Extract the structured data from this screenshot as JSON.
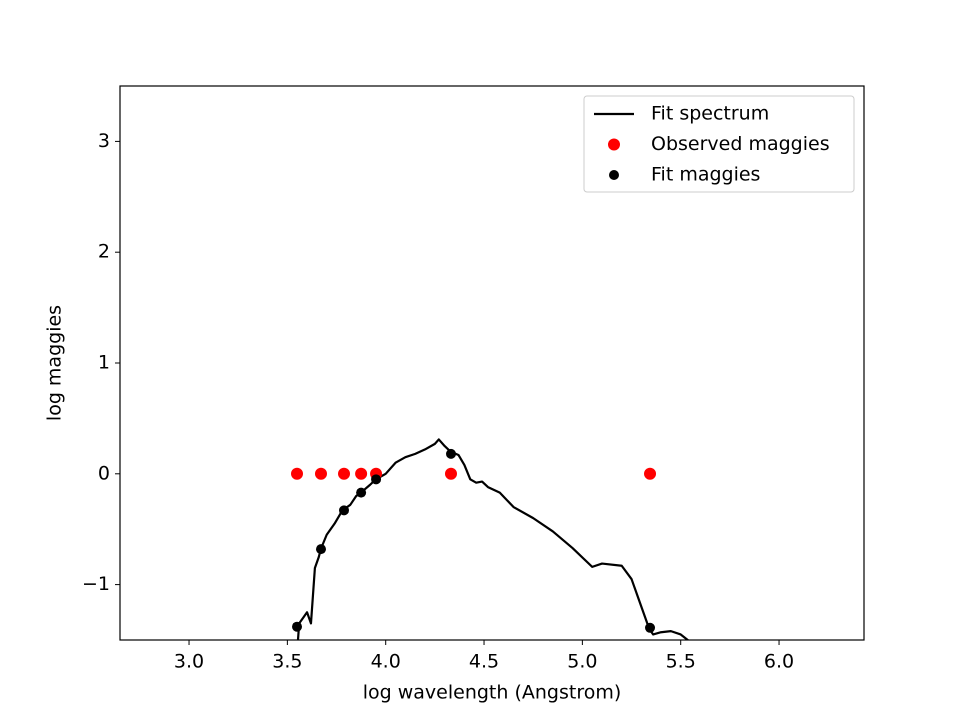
{
  "chart_data": {
    "type": "line",
    "xlabel": "log wavelength (Angstrom)",
    "ylabel": "log maggies",
    "xlim": [
      2.649,
      6.432
    ],
    "ylim": [
      -1.5,
      3.5
    ],
    "xticks": [
      {
        "value": 3,
        "label": "3.0"
      },
      {
        "value": 3.5,
        "label": "3.5"
      },
      {
        "value": 4,
        "label": "4.0"
      },
      {
        "value": 4.5,
        "label": "4.5"
      },
      {
        "value": 5,
        "label": "5.0"
      },
      {
        "value": 5.5,
        "label": "5.5"
      },
      {
        "value": 6,
        "label": "6.0"
      }
    ],
    "yticks": [
      {
        "value": -1,
        "label": "−1"
      },
      0,
      1,
      2,
      3
    ],
    "legend": "upper right",
    "series": [
      {
        "name": "Fit spectrum",
        "type": "line",
        "color": "#000000",
        "x": [
          3.55,
          3.56,
          3.58,
          3.6,
          3.62,
          3.63,
          3.64,
          3.66,
          3.67,
          3.7,
          3.74,
          3.78,
          3.82,
          3.85,
          3.88,
          3.92,
          3.95,
          4.0,
          4.05,
          4.1,
          4.15,
          4.2,
          4.25,
          4.27,
          4.3,
          4.33,
          4.37,
          4.4,
          4.43,
          4.46,
          4.49,
          4.52,
          4.58,
          4.65,
          4.75,
          4.85,
          4.95,
          5.05,
          5.1,
          5.2,
          5.25,
          5.3,
          5.34,
          5.36,
          5.4,
          5.45,
          5.5,
          5.55,
          5.58
        ],
        "values": [
          -1.6,
          -1.35,
          -1.3,
          -1.25,
          -1.35,
          -1.1,
          -0.85,
          -0.75,
          -0.68,
          -0.55,
          -0.45,
          -0.33,
          -0.28,
          -0.2,
          -0.16,
          -0.1,
          -0.05,
          0.0,
          0.1,
          0.15,
          0.18,
          0.22,
          0.27,
          0.31,
          0.25,
          0.2,
          0.17,
          0.08,
          -0.05,
          -0.08,
          -0.07,
          -0.12,
          -0.17,
          -0.3,
          -0.4,
          -0.52,
          -0.67,
          -0.84,
          -0.81,
          -0.83,
          -0.95,
          -1.2,
          -1.4,
          -1.45,
          -1.43,
          -1.42,
          -1.45,
          -1.52,
          -1.6
        ]
      },
      {
        "name": "Observed maggies",
        "type": "scatter",
        "color": "#ff0000",
        "x": [
          3.549,
          3.671,
          3.788,
          3.875,
          3.951,
          4.332,
          5.344
        ],
        "values": [
          0,
          0,
          0,
          0,
          0,
          0,
          0
        ]
      },
      {
        "name": "Fit maggies",
        "type": "scatter",
        "color": "#000000",
        "x": [
          3.549,
          3.671,
          3.788,
          3.875,
          3.951,
          4.332,
          5.344
        ],
        "values": [
          -1.38,
          -0.68,
          -0.33,
          -0.17,
          -0.05,
          0.18,
          -1.39
        ]
      }
    ]
  }
}
